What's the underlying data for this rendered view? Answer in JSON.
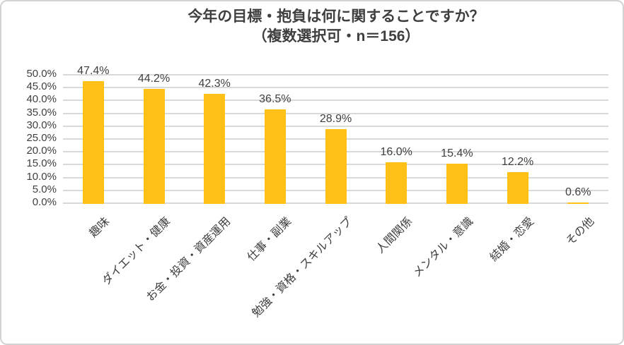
{
  "frame": {
    "border_color": "#d2d2d2",
    "background_color": "#ffffff"
  },
  "chart_data": {
    "type": "bar",
    "title": "今年の目標・抱負は何に関することですか？",
    "subtitle": "（複数選択可・n＝156）",
    "categories": [
      "趣味",
      "ダイエット・健康",
      "お金・投資・資産運用",
      "仕事・副業",
      "勉強・資格・スキルアップ",
      "人間関係",
      "メンタル・意識",
      "結婚・恋愛",
      "その他"
    ],
    "values": [
      47.4,
      44.2,
      42.3,
      36.5,
      28.9,
      16.0,
      15.4,
      12.2,
      0.6
    ],
    "data_labels": [
      "47.4%",
      "44.2%",
      "42.3%",
      "36.5%",
      "28.9%",
      "16.0%",
      "15.4%",
      "12.2%",
      "0.6%"
    ],
    "xlabel": "",
    "ylabel": "",
    "ylim": [
      0,
      50
    ],
    "ytick_step": 5,
    "ytick_labels_top_to_bottom": [
      "50.0%",
      "45.0%",
      "40.0%",
      "35.0%",
      "30.0%",
      "25.0%",
      "20.0%",
      "15.0%",
      "10.0%",
      "5.0%",
      "0.0%"
    ],
    "grid": true,
    "legend": false,
    "x_label_rotation_deg": 45,
    "bar_color": "#ffc117",
    "gridline_color": "#d9d9d9",
    "text_color": "#3f3f3f"
  }
}
